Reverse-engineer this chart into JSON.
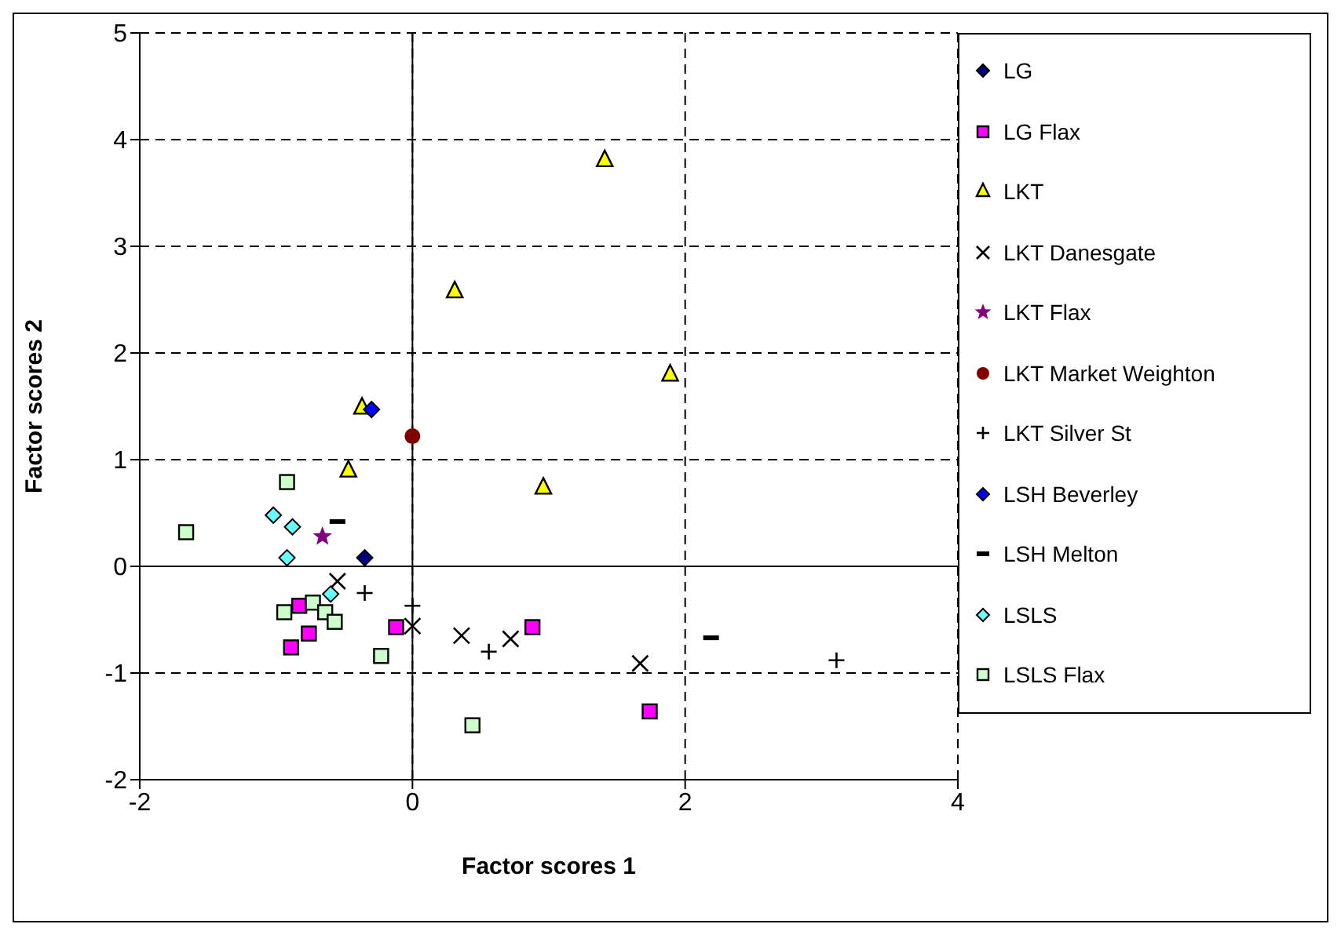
{
  "chart_data": {
    "type": "scatter",
    "xlabel": "Factor scores 1",
    "ylabel": "Factor scores 2",
    "xlim": [
      -2,
      4
    ],
    "ylim": [
      -2,
      5
    ],
    "xticks": [
      -2,
      0,
      2,
      4
    ],
    "yticks": [
      -2,
      -1,
      0,
      1,
      2,
      3,
      4,
      5
    ],
    "grid": true,
    "line_style": "dashed",
    "legend": "right",
    "series": [
      {
        "name": "LG",
        "color": "#000080",
        "marker": "diamond",
        "x": [
          -0.35
        ],
        "values": [
          0.08
        ]
      },
      {
        "name": "LG Flax",
        "color": "#ff00ff",
        "marker": "square",
        "x": [
          -0.83,
          -0.76,
          -0.89,
          -0.12,
          0.88,
          1.74
        ],
        "values": [
          -0.37,
          -0.63,
          -0.76,
          -0.57,
          -0.57,
          -1.36
        ]
      },
      {
        "name": "LKT",
        "color": "#ffff00",
        "marker": "triangle",
        "x": [
          1.41,
          0.31,
          1.89,
          -0.37,
          -0.47,
          0.96
        ],
        "values": [
          3.81,
          2.58,
          1.8,
          1.49,
          0.9,
          0.74
        ]
      },
      {
        "name": "LKT Danesgate",
        "color": "#000000",
        "marker": "cross",
        "x": [
          -0.55,
          0.0,
          0.36,
          0.72,
          1.67
        ],
        "values": [
          -0.14,
          -0.56,
          -0.65,
          -0.68,
          -0.91
        ]
      },
      {
        "name": "LKT Flax",
        "color": "#800080",
        "marker": "star",
        "x": [
          -0.66
        ],
        "values": [
          0.28
        ]
      },
      {
        "name": "LKT Market Weighton",
        "color": "#800000",
        "marker": "circle",
        "x": [
          0.0
        ],
        "values": [
          1.22
        ]
      },
      {
        "name": "LKT Silver St",
        "color": "#000000",
        "marker": "plus",
        "x": [
          -0.35,
          0.0,
          0.56,
          3.11
        ],
        "values": [
          -0.25,
          -0.37,
          -0.8,
          -0.88
        ]
      },
      {
        "name": "LSH Beverley",
        "color": "#0000ff",
        "marker": "diamond",
        "x": [
          -0.3
        ],
        "values": [
          1.47
        ]
      },
      {
        "name": "LSH Melton",
        "color": "#000000",
        "x": [
          -0.55,
          2.19
        ],
        "values": [
          0.42,
          -0.67
        ]
      },
      {
        "name": "LSLS",
        "color": "#66ffff",
        "marker": "diamond",
        "x": [
          -1.02,
          -0.88,
          -0.92,
          -0.6
        ],
        "values": [
          0.48,
          0.37,
          0.08,
          -0.26
        ]
      },
      {
        "name": "LSLS Flax",
        "color": "#ccffcc",
        "marker": "square",
        "x": [
          -1.66,
          -0.92,
          -0.94,
          -0.73,
          -0.64,
          -0.57,
          -0.23,
          0.44
        ],
        "values": [
          0.32,
          0.79,
          -0.43,
          -0.34,
          -0.43,
          -0.52,
          -0.84,
          -1.49
        ]
      }
    ]
  }
}
